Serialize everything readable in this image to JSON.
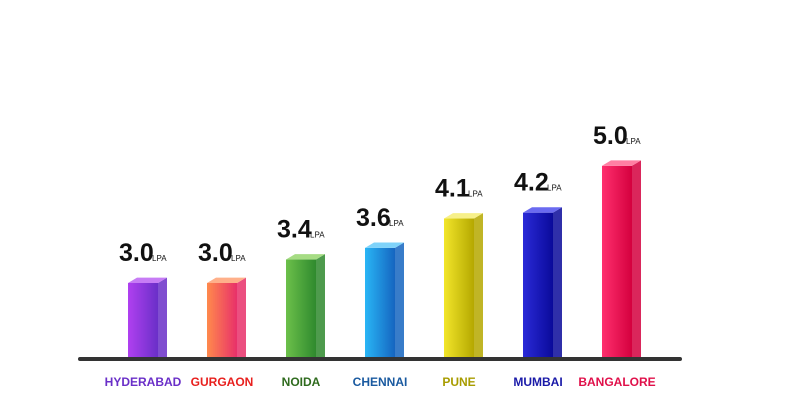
{
  "chart_data": {
    "type": "bar",
    "categories": [
      "HYDERABAD",
      "GURGAON",
      "NOIDA",
      "CHENNAI",
      "PUNE",
      "MUMBAI",
      "BANGALORE"
    ],
    "values": [
      3.0,
      3.0,
      3.4,
      3.6,
      4.1,
      4.2,
      5.0
    ],
    "value_labels": [
      "3.0",
      "3.0",
      "3.4",
      "3.6",
      "4.1",
      "4.2",
      "5.0"
    ],
    "unit": "LPA",
    "grid": false,
    "legend": "none",
    "bar_colors": [
      {
        "light": "#b040f0",
        "dark": "#6a2fc8",
        "top": "#c77cf5"
      },
      {
        "light": "#ff8a4c",
        "dark": "#e8306a",
        "top": "#ffb08a"
      },
      {
        "light": "#6cc04a",
        "dark": "#2f8a2e",
        "top": "#a6dc84"
      },
      {
        "light": "#29b6f6",
        "dark": "#1565c0",
        "top": "#7fd3fa"
      },
      {
        "light": "#f2e62a",
        "dark": "#b5a800",
        "top": "#f7f08a"
      },
      {
        "light": "#2a2ad8",
        "dark": "#0a0a9a",
        "top": "#6a6af0"
      },
      {
        "light": "#ff2f6e",
        "dark": "#d4003e",
        "top": "#ff7fa3"
      }
    ],
    "label_colors": [
      "#6a2fc8",
      "#e8201e",
      "#2f6b1e",
      "#1a5aa0",
      "#a89c00",
      "#1a1aa8",
      "#e0104a"
    ],
    "baseline_color": "#333333"
  }
}
